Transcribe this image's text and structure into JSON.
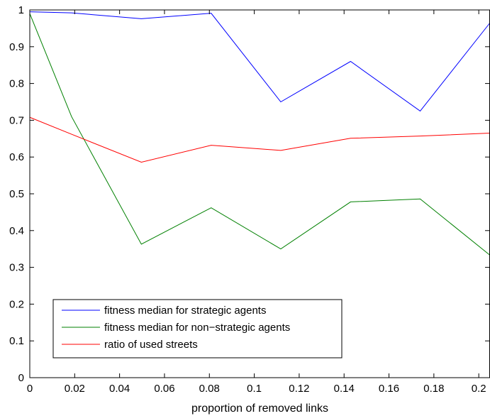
{
  "chart_data": {
    "type": "line",
    "title": "",
    "xlabel": "proportion of removed links",
    "ylabel": "",
    "xlim": [
      0,
      0.205
    ],
    "ylim": [
      0,
      1
    ],
    "grid": false,
    "legend_position": "bottom-left",
    "x_ticks": [
      0,
      0.02,
      0.04,
      0.06,
      0.08,
      0.1,
      0.12,
      0.14,
      0.16,
      0.18,
      0.2
    ],
    "x_tick_labels": [
      "0",
      "0.02",
      "0.04",
      "0.06",
      "0.08",
      "0.1",
      "0.12",
      "0.14",
      "0.16",
      "0.18",
      "0.2"
    ],
    "y_ticks": [
      0,
      0.1,
      0.2,
      0.3,
      0.4,
      0.5,
      0.6,
      0.7,
      0.8,
      0.9,
      1
    ],
    "y_tick_labels": [
      "0",
      "0.1",
      "0.2",
      "0.3",
      "0.4",
      "0.5",
      "0.6",
      "0.7",
      "0.8",
      "0.9",
      "1"
    ],
    "series": [
      {
        "name": "fitness median for strategic agents",
        "color": "#0000ff",
        "x": [
          0,
          0.0186,
          0.0497,
          0.0808,
          0.1118,
          0.1429,
          0.1739,
          0.205
        ],
        "y": [
          0.995,
          0.992,
          0.976,
          0.991,
          0.75,
          0.86,
          0.725,
          0.965
        ]
      },
      {
        "name": "fitness median for non−strategic agents",
        "color": "#008000",
        "x": [
          0,
          0.0186,
          0.0497,
          0.0808,
          0.1118,
          0.1429,
          0.1739,
          0.205
        ],
        "y": [
          0.99,
          0.71,
          0.363,
          0.462,
          0.35,
          0.478,
          0.486,
          0.333
        ]
      },
      {
        "name": "ratio of used streets",
        "color": "#ff0000",
        "x": [
          0,
          0.0186,
          0.0497,
          0.0808,
          0.1118,
          0.1429,
          0.1739,
          0.205
        ],
        "y": [
          0.708,
          0.662,
          0.586,
          0.632,
          0.618,
          0.651,
          0.657,
          0.665
        ]
      }
    ]
  }
}
